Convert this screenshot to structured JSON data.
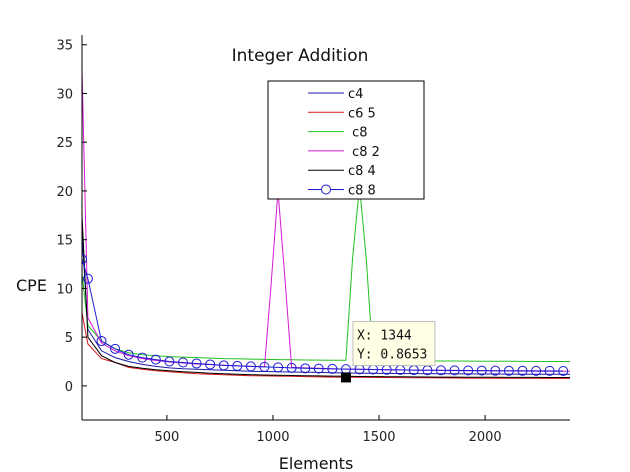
{
  "chart_data": {
    "type": "line",
    "title": "Integer Addition",
    "xlabel": "Elements",
    "ylabel": "CPE",
    "xlim": [
      100,
      2400
    ],
    "ylim": [
      -3.5,
      36
    ],
    "xticks": [
      500,
      1000,
      1500,
      2000
    ],
    "yticks": [
      0,
      5,
      10,
      15,
      20,
      25,
      30,
      35
    ],
    "grid": false,
    "legend_position": "top-center",
    "series": [
      {
        "name": "c4",
        "color": "#1a1aa6",
        "marker": "none",
        "x": [
          100,
          128,
          192,
          256,
          320,
          384,
          448,
          512,
          576,
          640,
          704,
          768,
          832,
          896,
          960,
          1024,
          1088,
          1152,
          1216,
          1280,
          1344,
          1408,
          1472,
          1536,
          1600,
          1664,
          1728,
          1792,
          1856,
          1920,
          1984,
          2048,
          2112,
          2176,
          2240,
          2304,
          2368,
          2400
        ],
        "y": [
          15.5,
          5.8,
          3.6,
          2.9,
          2.5,
          2.2,
          2.0,
          1.85,
          1.75,
          1.7,
          1.65,
          1.6,
          1.55,
          1.5,
          1.48,
          1.45,
          1.42,
          1.4,
          1.38,
          1.35,
          1.33,
          1.3,
          1.3,
          1.28,
          1.27,
          1.26,
          1.25,
          1.25,
          1.24,
          1.23,
          1.22,
          1.22,
          1.21,
          1.2,
          1.2,
          1.2,
          1.2,
          1.2
        ]
      },
      {
        "name": "c6 5",
        "color": "#d11a1a",
        "marker": "none",
        "x": [
          100,
          128,
          192,
          256,
          320,
          384,
          448,
          512,
          576,
          640,
          704,
          768,
          832,
          896,
          960,
          1024,
          1088,
          1152,
          1216,
          1280,
          1344,
          1408,
          1472,
          1536,
          1600,
          1664,
          1728,
          1792,
          1856,
          1920,
          1984,
          2048,
          2112,
          2176,
          2240,
          2304,
          2368,
          2400
        ],
        "y": [
          7.5,
          4.3,
          2.8,
          2.4,
          1.9,
          1.7,
          1.55,
          1.45,
          1.35,
          1.25,
          1.2,
          1.15,
          1.1,
          1.05,
          1.02,
          1.0,
          0.98,
          0.95,
          0.92,
          0.9,
          0.89,
          0.88,
          0.87,
          0.86,
          0.85,
          0.84,
          0.83,
          0.82,
          0.81,
          0.8,
          0.8,
          0.79,
          0.79,
          0.78,
          0.78,
          0.77,
          0.77,
          0.77
        ]
      },
      {
        "name": " c8",
        "color": "#22c022",
        "marker": "none",
        "x": [
          100,
          128,
          192,
          256,
          320,
          384,
          448,
          512,
          576,
          640,
          704,
          768,
          832,
          896,
          960,
          1024,
          1088,
          1152,
          1216,
          1280,
          1344,
          1375,
          1408,
          1440,
          1472,
          1536,
          1600,
          1664,
          1728,
          1792,
          1856,
          1920,
          1984,
          2048,
          2112,
          2176,
          2240,
          2304,
          2368,
          2400
        ],
        "y": [
          11.5,
          6.2,
          4.6,
          3.8,
          3.4,
          3.2,
          3.1,
          3.0,
          2.95,
          2.9,
          2.85,
          2.8,
          2.78,
          2.75,
          2.72,
          2.7,
          2.68,
          2.66,
          2.65,
          2.63,
          2.62,
          13.0,
          20.5,
          13.0,
          2.6,
          2.59,
          2.58,
          2.57,
          2.56,
          2.55,
          2.55,
          2.54,
          2.53,
          2.52,
          2.52,
          2.51,
          2.5,
          2.5,
          2.5,
          2.5
        ]
      },
      {
        "name": " c8 2",
        "color": "#d21ad2",
        "marker": "none",
        "x": [
          100,
          128,
          192,
          256,
          320,
          384,
          448,
          512,
          576,
          640,
          704,
          768,
          832,
          896,
          960,
          990,
          1024,
          1060,
          1088,
          1152,
          1216,
          1280,
          1344,
          1408,
          1472,
          1536,
          1600,
          1664,
          1728,
          1792,
          1856,
          1920,
          1984,
          2048,
          2112,
          2176,
          2240,
          2304,
          2368,
          2400
        ],
        "y": [
          32.5,
          7.0,
          4.4,
          3.6,
          3.1,
          2.8,
          2.6,
          2.45,
          2.35,
          2.25,
          2.18,
          2.12,
          2.06,
          2.0,
          1.95,
          10.0,
          20.0,
          10.0,
          1.9,
          1.85,
          1.8,
          1.76,
          1.72,
          1.7,
          1.68,
          1.66,
          1.64,
          1.62,
          1.6,
          1.58,
          1.57,
          1.56,
          1.55,
          1.54,
          1.53,
          1.52,
          1.51,
          1.5,
          1.5,
          1.5
        ]
      },
      {
        "name": "c8 4",
        "color": "#000000",
        "marker": "none",
        "x": [
          100,
          128,
          192,
          256,
          320,
          384,
          448,
          512,
          576,
          640,
          704,
          768,
          832,
          896,
          960,
          1024,
          1088,
          1152,
          1216,
          1280,
          1344,
          1408,
          1472,
          1536,
          1600,
          1664,
          1728,
          1792,
          1856,
          1920,
          1984,
          2048,
          2112,
          2176,
          2240,
          2304,
          2368,
          2400
        ],
        "y": [
          17.5,
          5.0,
          3.1,
          2.4,
          2.0,
          1.8,
          1.65,
          1.55,
          1.45,
          1.38,
          1.3,
          1.25,
          1.2,
          1.15,
          1.12,
          1.1,
          1.07,
          1.04,
          1.02,
          1.0,
          0.98,
          0.96,
          0.95,
          0.94,
          0.93,
          0.92,
          0.91,
          0.9,
          0.9,
          0.89,
          0.88,
          0.88,
          0.87,
          0.87,
          0.87,
          0.86,
          0.86,
          0.86
        ]
      },
      {
        "name": "c8 8",
        "color": "#1a1ad2",
        "marker": "circle",
        "x": [
          100,
          128,
          192,
          256,
          320,
          384,
          448,
          512,
          576,
          640,
          704,
          768,
          832,
          896,
          960,
          1024,
          1088,
          1152,
          1216,
          1280,
          1344,
          1408,
          1472,
          1536,
          1600,
          1664,
          1728,
          1792,
          1856,
          1920,
          1984,
          2048,
          2112,
          2176,
          2240,
          2304,
          2368
        ],
        "y": [
          13.0,
          11.0,
          4.6,
          3.8,
          3.2,
          2.9,
          2.7,
          2.5,
          2.4,
          2.3,
          2.2,
          2.1,
          2.05,
          2.0,
          1.95,
          1.9,
          1.85,
          1.8,
          1.77,
          1.74,
          1.72,
          1.7,
          1.68,
          1.66,
          1.64,
          1.62,
          1.61,
          1.6,
          1.59,
          1.58,
          1.57,
          1.56,
          1.55,
          1.55,
          1.54,
          1.54,
          1.53
        ]
      }
    ],
    "datatip": {
      "x_text": "X: 1344",
      "y_text": "Y: 0.8653",
      "x": 1344,
      "y": 0.8653
    }
  }
}
